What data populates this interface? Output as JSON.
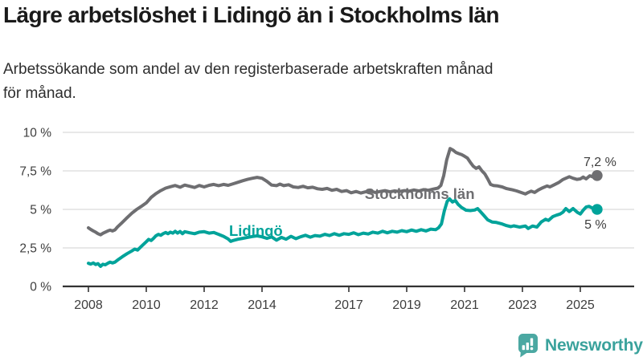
{
  "header": {
    "title": "Lägre arbetslöshet i Lidingö än i Stockholms län",
    "subtitle_lines": [
      "Arbetssökande som andel av den registerbaserade arbetskraften månad",
      "för månad."
    ]
  },
  "footer": {
    "brand": "Newsworthy",
    "logo_icon": "bar-chart-speech-bubble-icon"
  },
  "colors": {
    "lidingo": "#00a39a",
    "stockholm": "#6e6e71",
    "axis_line": "#333333",
    "axis_text": "#3d3d3d",
    "grid": "#d9d9d9",
    "title": "#1a1a1a",
    "brand_text": "#3aa29c",
    "brand_icon": "#4ba8a2"
  },
  "chart_data": {
    "type": "line",
    "title": "Lägre arbetslöshet i Lidingö än i Stockholms län",
    "subtitle": "Arbetssökande som andel av den registerbaserade arbetskraften månad för månad.",
    "unit": "%",
    "x_unit": "year (monthly data)",
    "ylim": [
      0,
      10
    ],
    "grid": "horizontal",
    "legend_position": "inline-labels",
    "yticks": [
      {
        "value": 0,
        "label": "0 %"
      },
      {
        "value": 2.5,
        "label": "2,5 %"
      },
      {
        "value": 5,
        "label": "5 %"
      },
      {
        "value": 7.5,
        "label": "7,5 %"
      },
      {
        "value": 10,
        "label": "10 %"
      }
    ],
    "xticks": [
      2008,
      2010,
      2012,
      2014,
      2017,
      2019,
      2021,
      2023,
      2025
    ],
    "series": [
      {
        "id": "stockholm",
        "name": "Stockholms län",
        "color": "#6e6e71",
        "end_label": "7,2 %",
        "end_label_side": "above",
        "label_at": [
          2017.55,
          5.67
        ],
        "points": [
          [
            2008.0,
            3.8
          ],
          [
            2008.08,
            3.7
          ],
          [
            2008.17,
            3.6
          ],
          [
            2008.25,
            3.52
          ],
          [
            2008.33,
            3.42
          ],
          [
            2008.42,
            3.35
          ],
          [
            2008.5,
            3.45
          ],
          [
            2008.58,
            3.52
          ],
          [
            2008.67,
            3.6
          ],
          [
            2008.75,
            3.65
          ],
          [
            2008.83,
            3.6
          ],
          [
            2008.92,
            3.67
          ],
          [
            2009.0,
            3.85
          ],
          [
            2009.17,
            4.15
          ],
          [
            2009.33,
            4.45
          ],
          [
            2009.5,
            4.75
          ],
          [
            2009.67,
            5.0
          ],
          [
            2009.83,
            5.2
          ],
          [
            2010.0,
            5.42
          ],
          [
            2010.17,
            5.78
          ],
          [
            2010.33,
            6.02
          ],
          [
            2010.5,
            6.22
          ],
          [
            2010.67,
            6.38
          ],
          [
            2010.83,
            6.47
          ],
          [
            2011.0,
            6.55
          ],
          [
            2011.17,
            6.44
          ],
          [
            2011.33,
            6.58
          ],
          [
            2011.5,
            6.5
          ],
          [
            2011.67,
            6.42
          ],
          [
            2011.83,
            6.55
          ],
          [
            2012.0,
            6.46
          ],
          [
            2012.17,
            6.56
          ],
          [
            2012.33,
            6.62
          ],
          [
            2012.5,
            6.54
          ],
          [
            2012.67,
            6.62
          ],
          [
            2012.83,
            6.56
          ],
          [
            2013.0,
            6.66
          ],
          [
            2013.17,
            6.76
          ],
          [
            2013.33,
            6.86
          ],
          [
            2013.5,
            6.95
          ],
          [
            2013.67,
            7.02
          ],
          [
            2013.83,
            7.08
          ],
          [
            2014.0,
            7.02
          ],
          [
            2014.17,
            6.82
          ],
          [
            2014.33,
            6.58
          ],
          [
            2014.5,
            6.54
          ],
          [
            2014.62,
            6.64
          ],
          [
            2014.75,
            6.54
          ],
          [
            2014.92,
            6.6
          ],
          [
            2015.08,
            6.46
          ],
          [
            2015.25,
            6.42
          ],
          [
            2015.42,
            6.5
          ],
          [
            2015.58,
            6.4
          ],
          [
            2015.75,
            6.44
          ],
          [
            2015.92,
            6.34
          ],
          [
            2016.08,
            6.3
          ],
          [
            2016.25,
            6.36
          ],
          [
            2016.42,
            6.24
          ],
          [
            2016.58,
            6.3
          ],
          [
            2016.75,
            6.16
          ],
          [
            2016.92,
            6.22
          ],
          [
            2017.08,
            6.08
          ],
          [
            2017.25,
            6.16
          ],
          [
            2017.42,
            6.06
          ],
          [
            2017.58,
            6.14
          ],
          [
            2017.75,
            6.18
          ],
          [
            2017.92,
            6.1
          ],
          [
            2018.08,
            6.16
          ],
          [
            2018.25,
            6.22
          ],
          [
            2018.42,
            6.14
          ],
          [
            2018.58,
            6.2
          ],
          [
            2018.75,
            6.16
          ],
          [
            2018.92,
            6.22
          ],
          [
            2019.08,
            6.18
          ],
          [
            2019.25,
            6.26
          ],
          [
            2019.42,
            6.2
          ],
          [
            2019.58,
            6.28
          ],
          [
            2019.75,
            6.24
          ],
          [
            2019.92,
            6.32
          ],
          [
            2020.08,
            6.38
          ],
          [
            2020.18,
            6.55
          ],
          [
            2020.28,
            7.2
          ],
          [
            2020.38,
            8.2
          ],
          [
            2020.5,
            8.95
          ],
          [
            2020.6,
            8.85
          ],
          [
            2020.7,
            8.7
          ],
          [
            2020.8,
            8.62
          ],
          [
            2020.9,
            8.55
          ],
          [
            2021.0,
            8.45
          ],
          [
            2021.1,
            8.33
          ],
          [
            2021.2,
            8.05
          ],
          [
            2021.3,
            7.8
          ],
          [
            2021.4,
            7.66
          ],
          [
            2021.5,
            7.76
          ],
          [
            2021.6,
            7.5
          ],
          [
            2021.7,
            7.3
          ],
          [
            2021.8,
            6.98
          ],
          [
            2021.9,
            6.62
          ],
          [
            2022.0,
            6.55
          ],
          [
            2022.15,
            6.52
          ],
          [
            2022.3,
            6.46
          ],
          [
            2022.45,
            6.35
          ],
          [
            2022.65,
            6.27
          ],
          [
            2022.8,
            6.2
          ],
          [
            2022.95,
            6.1
          ],
          [
            2023.1,
            6.0
          ],
          [
            2023.2,
            6.1
          ],
          [
            2023.3,
            6.18
          ],
          [
            2023.42,
            6.1
          ],
          [
            2023.55,
            6.26
          ],
          [
            2023.7,
            6.4
          ],
          [
            2023.85,
            6.52
          ],
          [
            2023.95,
            6.46
          ],
          [
            2024.1,
            6.6
          ],
          [
            2024.25,
            6.74
          ],
          [
            2024.4,
            6.94
          ],
          [
            2024.5,
            7.02
          ],
          [
            2024.62,
            7.12
          ],
          [
            2024.75,
            7.02
          ],
          [
            2024.88,
            6.95
          ],
          [
            2025.0,
            6.98
          ],
          [
            2025.1,
            7.1
          ],
          [
            2025.2,
            6.98
          ],
          [
            2025.33,
            7.18
          ],
          [
            2025.45,
            7.1
          ],
          [
            2025.58,
            7.2
          ]
        ]
      },
      {
        "id": "lidingo",
        "name": "Lidingö",
        "color": "#00a39a",
        "end_label": "5 %",
        "end_label_side": "below",
        "label_at": [
          2012.86,
          3.28
        ],
        "points": [
          [
            2008.0,
            1.5
          ],
          [
            2008.08,
            1.45
          ],
          [
            2008.17,
            1.52
          ],
          [
            2008.25,
            1.42
          ],
          [
            2008.33,
            1.48
          ],
          [
            2008.42,
            1.3
          ],
          [
            2008.5,
            1.44
          ],
          [
            2008.58,
            1.4
          ],
          [
            2008.67,
            1.5
          ],
          [
            2008.75,
            1.58
          ],
          [
            2008.83,
            1.52
          ],
          [
            2008.92,
            1.58
          ],
          [
            2009.0,
            1.7
          ],
          [
            2009.17,
            1.92
          ],
          [
            2009.33,
            2.12
          ],
          [
            2009.5,
            2.3
          ],
          [
            2009.6,
            2.42
          ],
          [
            2009.7,
            2.36
          ],
          [
            2009.83,
            2.6
          ],
          [
            2010.0,
            2.9
          ],
          [
            2010.08,
            3.05
          ],
          [
            2010.17,
            2.98
          ],
          [
            2010.25,
            3.12
          ],
          [
            2010.33,
            3.28
          ],
          [
            2010.42,
            3.38
          ],
          [
            2010.5,
            3.32
          ],
          [
            2010.58,
            3.42
          ],
          [
            2010.67,
            3.5
          ],
          [
            2010.75,
            3.42
          ],
          [
            2010.83,
            3.52
          ],
          [
            2010.92,
            3.46
          ],
          [
            2011.0,
            3.58
          ],
          [
            2011.08,
            3.46
          ],
          [
            2011.17,
            3.56
          ],
          [
            2011.25,
            3.42
          ],
          [
            2011.33,
            3.55
          ],
          [
            2011.5,
            3.48
          ],
          [
            2011.67,
            3.42
          ],
          [
            2011.83,
            3.52
          ],
          [
            2012.0,
            3.55
          ],
          [
            2012.17,
            3.46
          ],
          [
            2012.33,
            3.5
          ],
          [
            2012.5,
            3.38
          ],
          [
            2012.67,
            3.25
          ],
          [
            2012.83,
            3.08
          ],
          [
            2012.92,
            2.92
          ],
          [
            2013.0,
            2.98
          ],
          [
            2013.17,
            3.06
          ],
          [
            2013.33,
            3.12
          ],
          [
            2013.5,
            3.18
          ],
          [
            2013.67,
            3.24
          ],
          [
            2013.83,
            3.28
          ],
          [
            2014.0,
            3.22
          ],
          [
            2014.17,
            3.12
          ],
          [
            2014.33,
            3.22
          ],
          [
            2014.5,
            3.0
          ],
          [
            2014.67,
            3.18
          ],
          [
            2014.83,
            3.06
          ],
          [
            2015.0,
            3.25
          ],
          [
            2015.17,
            3.1
          ],
          [
            2015.33,
            3.22
          ],
          [
            2015.5,
            3.32
          ],
          [
            2015.67,
            3.2
          ],
          [
            2015.83,
            3.3
          ],
          [
            2016.0,
            3.26
          ],
          [
            2016.17,
            3.38
          ],
          [
            2016.33,
            3.3
          ],
          [
            2016.5,
            3.42
          ],
          [
            2016.67,
            3.32
          ],
          [
            2016.83,
            3.42
          ],
          [
            2017.0,
            3.38
          ],
          [
            2017.17,
            3.48
          ],
          [
            2017.33,
            3.36
          ],
          [
            2017.5,
            3.46
          ],
          [
            2017.67,
            3.4
          ],
          [
            2017.83,
            3.52
          ],
          [
            2018.0,
            3.46
          ],
          [
            2018.17,
            3.58
          ],
          [
            2018.33,
            3.48
          ],
          [
            2018.5,
            3.58
          ],
          [
            2018.67,
            3.52
          ],
          [
            2018.83,
            3.62
          ],
          [
            2019.0,
            3.55
          ],
          [
            2019.17,
            3.66
          ],
          [
            2019.33,
            3.58
          ],
          [
            2019.5,
            3.68
          ],
          [
            2019.67,
            3.6
          ],
          [
            2019.83,
            3.72
          ],
          [
            2020.0,
            3.68
          ],
          [
            2020.1,
            3.8
          ],
          [
            2020.2,
            4.05
          ],
          [
            2020.3,
            4.9
          ],
          [
            2020.4,
            5.52
          ],
          [
            2020.48,
            5.68
          ],
          [
            2020.58,
            5.48
          ],
          [
            2020.68,
            5.58
          ],
          [
            2020.78,
            5.32
          ],
          [
            2020.9,
            5.12
          ],
          [
            2021.05,
            4.95
          ],
          [
            2021.2,
            4.92
          ],
          [
            2021.35,
            4.96
          ],
          [
            2021.45,
            5.05
          ],
          [
            2021.55,
            4.85
          ],
          [
            2021.65,
            4.64
          ],
          [
            2021.8,
            4.32
          ],
          [
            2021.95,
            4.18
          ],
          [
            2022.1,
            4.15
          ],
          [
            2022.3,
            4.05
          ],
          [
            2022.45,
            3.95
          ],
          [
            2022.6,
            3.88
          ],
          [
            2022.7,
            3.93
          ],
          [
            2022.9,
            3.85
          ],
          [
            2023.1,
            3.92
          ],
          [
            2023.2,
            3.76
          ],
          [
            2023.35,
            3.92
          ],
          [
            2023.5,
            3.85
          ],
          [
            2023.65,
            4.18
          ],
          [
            2023.8,
            4.36
          ],
          [
            2023.9,
            4.28
          ],
          [
            2024.05,
            4.53
          ],
          [
            2024.17,
            4.62
          ],
          [
            2024.3,
            4.7
          ],
          [
            2024.4,
            4.82
          ],
          [
            2024.5,
            5.05
          ],
          [
            2024.62,
            4.86
          ],
          [
            2024.75,
            5.05
          ],
          [
            2024.9,
            4.8
          ],
          [
            2025.0,
            4.7
          ],
          [
            2025.1,
            4.95
          ],
          [
            2025.2,
            5.15
          ],
          [
            2025.3,
            5.2
          ],
          [
            2025.45,
            5.05
          ],
          [
            2025.58,
            5.0
          ]
        ]
      }
    ]
  }
}
